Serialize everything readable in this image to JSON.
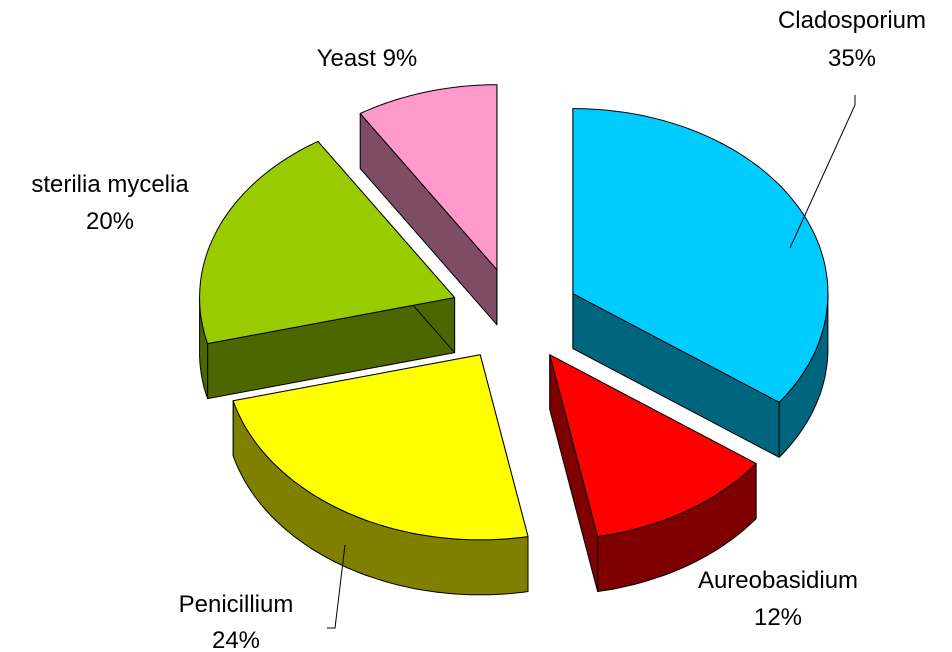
{
  "chart_data": {
    "type": "pie3d",
    "categories": [
      "Cladosporium",
      "Aureobasidium",
      "Penicillium",
      "sterilia mycelia",
      "Yeast"
    ],
    "values": [
      35,
      12,
      24,
      20,
      9
    ],
    "value_labels": [
      "35%",
      "12%",
      "24%",
      "20%",
      "9%"
    ],
    "colors": [
      "#00ccff",
      "#ff0000",
      "#ffff00",
      "#99cc00",
      "#ff99cc"
    ]
  }
}
